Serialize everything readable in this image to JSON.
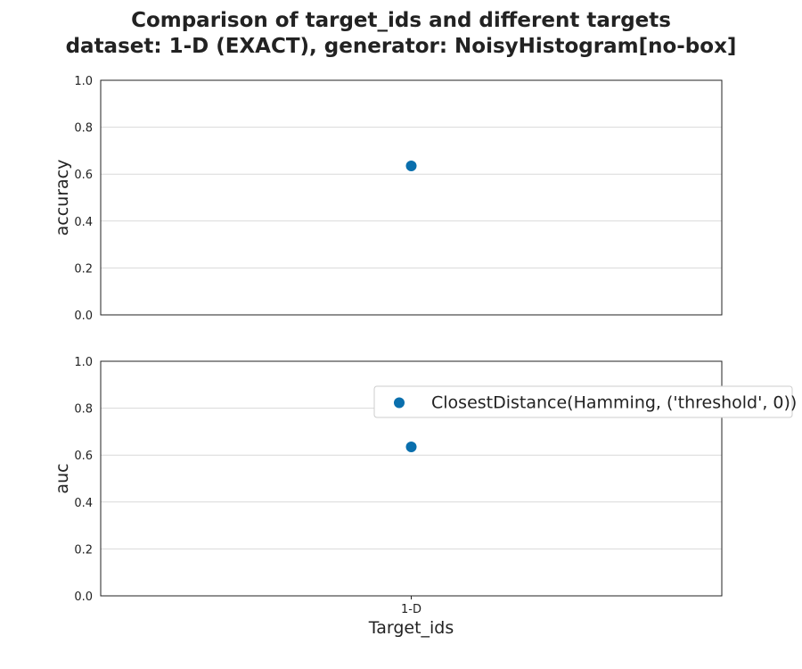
{
  "title": {
    "line1": "Comparison of target_ids and different targets",
    "line2": "dataset: 1-D (EXACT), generator: NoisyHistogram[no-box]"
  },
  "colors": {
    "marker": "#0a6fad",
    "grid": "#d9d9d9",
    "axis": "#222222"
  },
  "chart_data": [
    {
      "type": "scatter",
      "categories": [
        "1-D"
      ],
      "series": [
        {
          "name": "ClosestDistance(Hamming, ('threshold', 0))",
          "values": [
            0.635
          ]
        }
      ],
      "xlabel": "",
      "ylabel": "accuracy",
      "ylim": [
        0,
        1
      ],
      "yticks": [
        "0.0",
        "0.2",
        "0.4",
        "0.6",
        "0.8",
        "1.0"
      ],
      "grid": true,
      "legend": false
    },
    {
      "type": "scatter",
      "categories": [
        "1-D"
      ],
      "series": [
        {
          "name": "ClosestDistance(Hamming, ('threshold', 0))",
          "values": [
            0.635
          ]
        }
      ],
      "xlabel": "Target_ids",
      "ylabel": "auc",
      "ylim": [
        0,
        1
      ],
      "yticks": [
        "0.0",
        "0.2",
        "0.4",
        "0.6",
        "0.8",
        "1.0"
      ],
      "grid": true,
      "legend": true,
      "legend_position": "upper-right"
    }
  ]
}
